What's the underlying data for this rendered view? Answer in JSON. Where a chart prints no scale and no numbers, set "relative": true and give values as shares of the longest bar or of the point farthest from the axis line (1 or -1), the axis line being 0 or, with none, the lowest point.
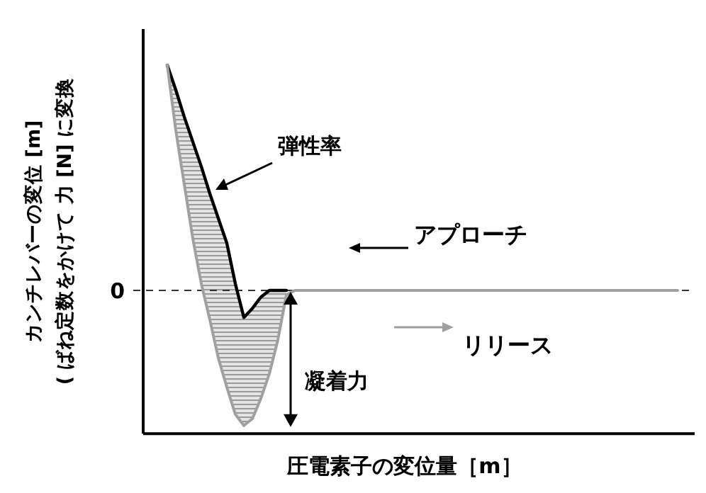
{
  "chart_data": {
    "type": "line",
    "relative": true,
    "xlabel": "圧電素子の変位量［m］",
    "ylabel": "カンチレバーの変位 [m]\n( ばね定数をかけて 力 [N] に変換",
    "categories": [
      null,
      null,
      null,
      null,
      null,
      null,
      null,
      null,
      null,
      null,
      null,
      null,
      null,
      null,
      null,
      null,
      null,
      null,
      null,
      null,
      null,
      null,
      null,
      null,
      null,
      null,
      null,
      null,
      null,
      null,
      null,
      null,
      null,
      null,
      null,
      null,
      null,
      null,
      null,
      null,
      null,
      null,
      null,
      null,
      null,
      null,
      null,
      null,
      null,
      null,
      null,
      null,
      null,
      null,
      null,
      null,
      null,
      null,
      null,
      null,
      null
    ],
    "series": [
      {
        "name": "アプローチ",
        "color": "#000000",
        "values": [
          1,
          0.89,
          0.77,
          0.66,
          0.55,
          0.43,
          0.32,
          0.21,
          0.03,
          -0.12,
          -0.08,
          -0.03,
          0,
          0,
          0,
          null,
          null,
          null,
          null,
          null,
          null,
          null,
          null,
          null,
          null,
          null,
          null,
          null,
          null,
          null,
          null,
          null,
          null,
          null,
          null,
          null,
          null,
          null,
          null,
          null,
          null,
          null,
          null,
          null,
          null,
          null,
          null,
          null,
          null,
          null,
          null,
          null,
          null,
          null,
          null,
          null,
          null,
          null,
          null,
          null,
          null
        ]
      },
      {
        "name": "リリース",
        "color": "#a0a0a0",
        "values": [
          1,
          0.71,
          0.47,
          0.23,
          0.03,
          -0.13,
          -0.3,
          -0.43,
          -0.55,
          -0.6,
          -0.57,
          -0.48,
          -0.37,
          -0.22,
          -0.02,
          0,
          0,
          0,
          0,
          0,
          0,
          0,
          0,
          0,
          0,
          0,
          0,
          0,
          0,
          0,
          0,
          0,
          0,
          0,
          0,
          0,
          0,
          0,
          0,
          0,
          0,
          0,
          0,
          0,
          0,
          0,
          0,
          0,
          0,
          0,
          0,
          0,
          0,
          0,
          0,
          0,
          0,
          0,
          0,
          0,
          0
        ]
      }
    ],
    "ref_lines": [
      {
        "axis": "y",
        "value": 0,
        "label": "0",
        "line_style": "dashed"
      }
    ],
    "annotations": [
      "弾性率",
      "凝着力"
    ],
    "legend": "right"
  }
}
